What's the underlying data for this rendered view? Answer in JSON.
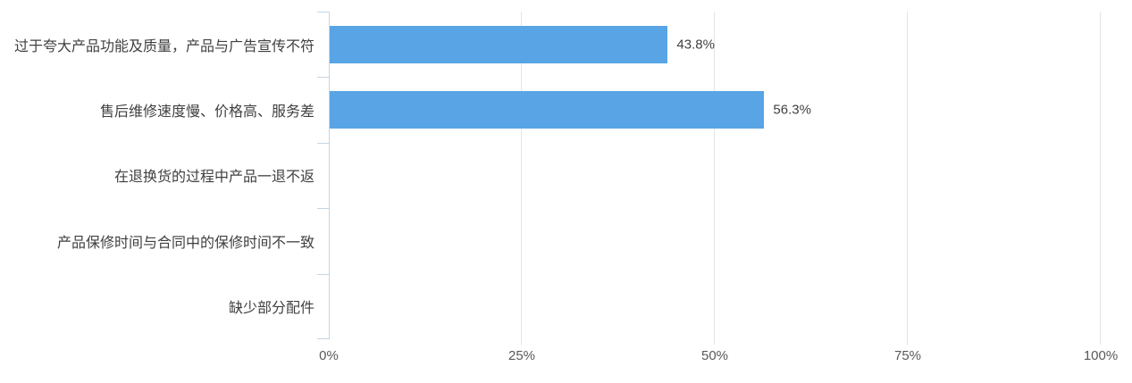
{
  "chart_data": {
    "type": "bar",
    "orientation": "horizontal",
    "title": "",
    "categories": [
      "过于夸大产品功能及质量，产品与广告宣传不符",
      "售后维修速度慢、价格高、服务差",
      "在退换货的过程中产品一退不返",
      "产品保修时间与合同中的保修时间不一致",
      "缺少部分配件"
    ],
    "values": [
      43.8,
      56.3,
      0,
      0,
      0
    ],
    "data_labels": [
      "43.8%",
      "56.3%",
      "",
      "",
      ""
    ],
    "xlim": [
      0,
      100
    ],
    "x_ticks": [
      {
        "label": "0%",
        "value": 0
      },
      {
        "label": "25%",
        "value": 25
      },
      {
        "label": "50%",
        "value": 50
      },
      {
        "label": "75%",
        "value": 75
      },
      {
        "label": "100%",
        "value": 100
      }
    ],
    "grid": true,
    "legend": false,
    "colors": {
      "bar": "#58A4E4",
      "gridline": "#E4E4E4",
      "axis_line": "#C5D6E4",
      "category_label": "#404040",
      "data_label": "#3F3F3F",
      "tick_label": "#595959",
      "background": "#FFFFFF"
    }
  }
}
